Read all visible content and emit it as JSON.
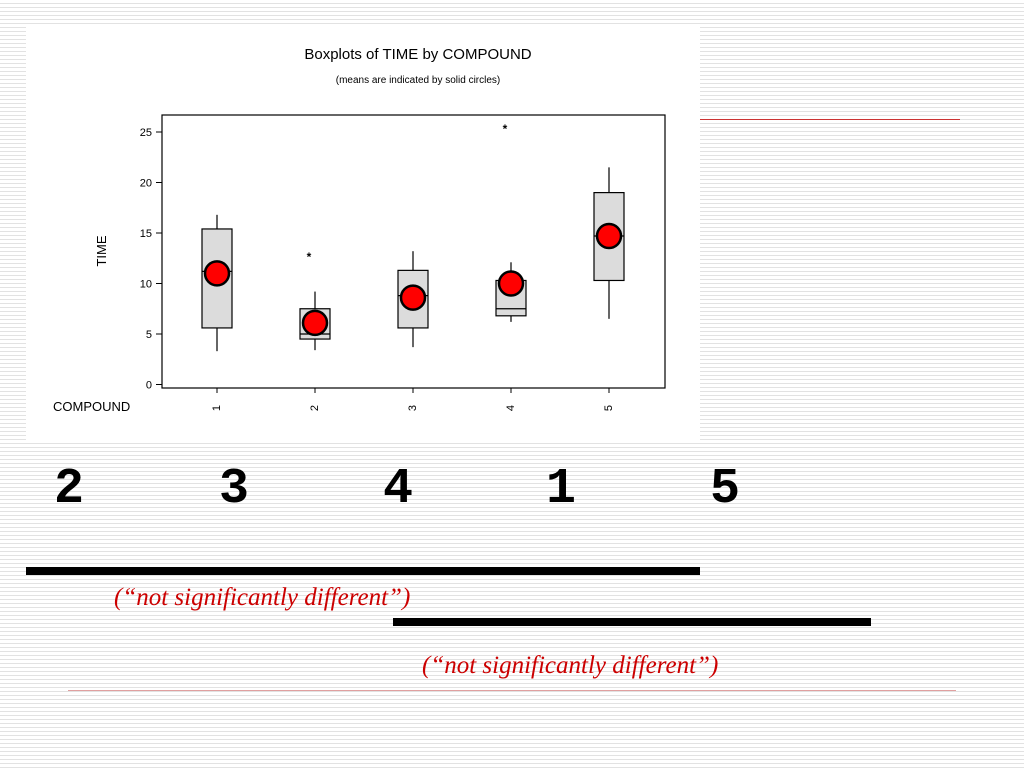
{
  "chart_data": {
    "type": "boxplot",
    "title": "Boxplots of TIME by COMPOUND",
    "subtitle": "(means are indicated by solid circles)",
    "xlabel": "COMPOUND",
    "ylabel": "TIME",
    "ylim": [
      0,
      27
    ],
    "yticks": [
      0,
      5,
      10,
      15,
      20,
      25
    ],
    "categories": [
      "1",
      "2",
      "3",
      "4",
      "5"
    ],
    "boxes": [
      {
        "label": "1",
        "whisker_low": 3.3,
        "q1": 5.6,
        "median": 11.2,
        "q3": 15.4,
        "whisker_high": 16.8,
        "mean": 11.0,
        "outliers": []
      },
      {
        "label": "2",
        "whisker_low": 3.4,
        "q1": 4.5,
        "median": 5.0,
        "q3": 7.5,
        "whisker_high": 9.2,
        "mean": 6.1,
        "outliers": [
          12.7
        ]
      },
      {
        "label": "3",
        "whisker_low": 3.7,
        "q1": 5.6,
        "median": 8.8,
        "q3": 11.3,
        "whisker_high": 13.2,
        "mean": 8.6,
        "outliers": []
      },
      {
        "label": "4",
        "whisker_low": 6.2,
        "q1": 6.8,
        "median": 7.5,
        "q3": 10.3,
        "whisker_high": 12.1,
        "mean": 10.0,
        "outliers": [
          25.4
        ]
      },
      {
        "label": "5",
        "whisker_low": 6.5,
        "q1": 10.3,
        "median": 14.7,
        "q3": 19.0,
        "whisker_high": 21.5,
        "mean": 14.7,
        "outliers": []
      }
    ],
    "grid": false,
    "colors": {
      "box_fill": "#dcdcdc",
      "mean_marker": "#ff0000",
      "outline": "#000000"
    }
  },
  "ranking": {
    "order": [
      "2",
      "3",
      "4",
      "1",
      "5"
    ]
  },
  "groupings": [
    {
      "label": "(“not significantly different”)"
    },
    {
      "label": "(“not significantly different”)"
    }
  ],
  "colors": {
    "annotation_text": "#cc0000",
    "rule": "#cc3333"
  }
}
